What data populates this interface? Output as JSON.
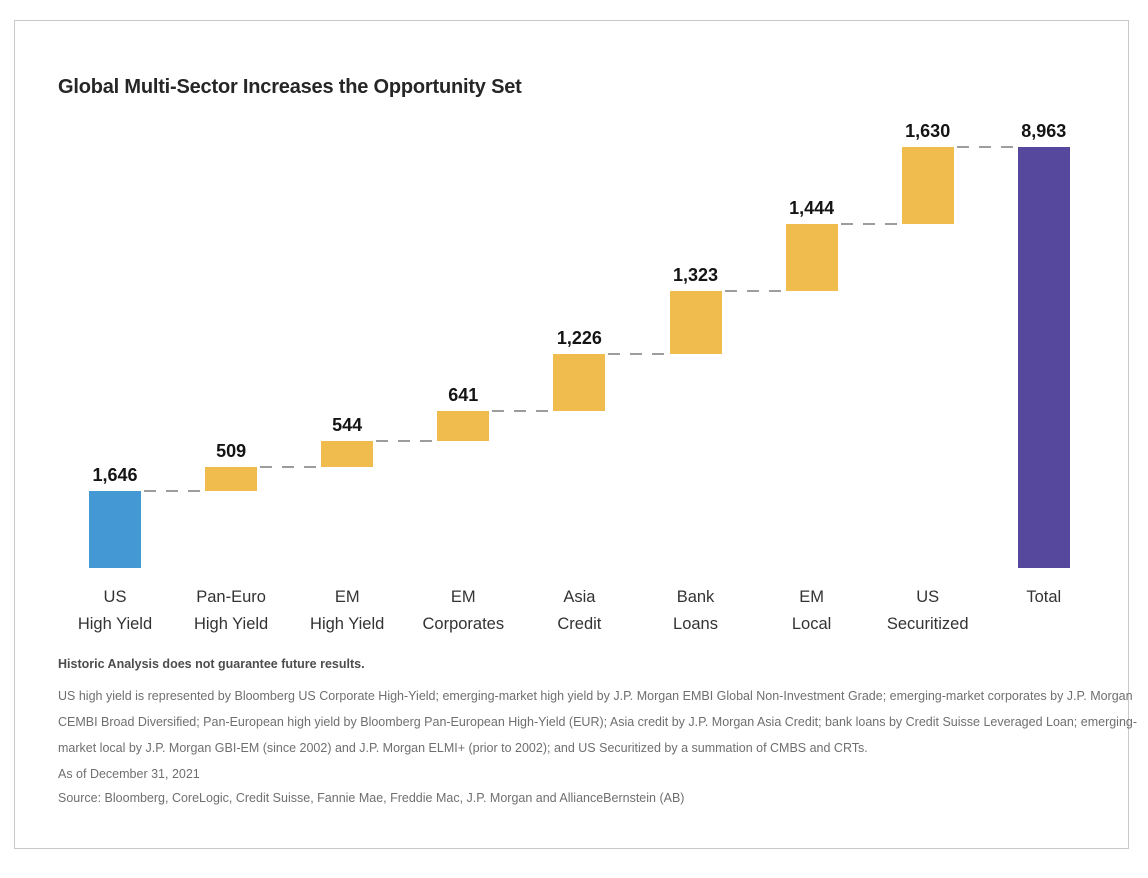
{
  "title": "Global Multi-Sector Increases the Opportunity Set",
  "chart_data": {
    "type": "bar",
    "subtype": "waterfall",
    "title": "Global Multi-Sector Increases the Opportunity Set",
    "xlabel": "",
    "ylabel": "",
    "ylim": [
      0,
      8963
    ],
    "grid": false,
    "legend": "none",
    "items": [
      {
        "label_lines": [
          "US",
          "High Yield"
        ],
        "value": 1646,
        "value_label": "1,646",
        "role": "start"
      },
      {
        "label_lines": [
          "Pan-Euro",
          "High Yield"
        ],
        "value": 509,
        "value_label": "509",
        "role": "increase"
      },
      {
        "label_lines": [
          "EM",
          "High Yield"
        ],
        "value": 544,
        "value_label": "544",
        "role": "increase"
      },
      {
        "label_lines": [
          "EM",
          "Corporates"
        ],
        "value": 641,
        "value_label": "641",
        "role": "increase"
      },
      {
        "label_lines": [
          "Asia",
          "Credit"
        ],
        "value": 1226,
        "value_label": "1,226",
        "role": "increase"
      },
      {
        "label_lines": [
          "Bank",
          "Loans"
        ],
        "value": 1323,
        "value_label": "1,323",
        "role": "increase"
      },
      {
        "label_lines": [
          "EM",
          "Local"
        ],
        "value": 1444,
        "value_label": "1,444",
        "role": "increase"
      },
      {
        "label_lines": [
          "US",
          "Securitized"
        ],
        "value": 1630,
        "value_label": "1,630",
        "role": "increase"
      },
      {
        "label_lines": [
          "Total"
        ],
        "value": 8963,
        "value_label": "8,963",
        "role": "total"
      }
    ],
    "colors": {
      "start": "#4498d3",
      "increase": "#f0bc4d",
      "total": "#55489d",
      "connector": "#9d9d9d"
    }
  },
  "footnotes": {
    "bold": "Historic Analysis does not guarantee future results.",
    "body_lines": [
      "US high yield is represented by Bloomberg US Corporate High-Yield; emerging-market high yield by J.P. Morgan EMBI Global Non-Investment Grade; emerging-market corporates by J.P. Morgan",
      "CEMBI Broad Diversified; Pan-European high yield by Bloomberg Pan-European High-Yield (EUR); Asia credit by J.P. Morgan Asia Credit; bank loans by Credit Suisse Leveraged Loan; emerging-",
      "market local by J.P. Morgan GBI-EM (since 2002) and J.P. Morgan ELMI+ (prior to 2002); and US Securitized by a summation of CMBS and CRTs."
    ],
    "as_of": "As of December 31, 2021",
    "source": "Source: Bloomberg, CoreLogic, Credit Suisse, Fannie Mae, Freddie Mac, J.P. Morgan and AllianceBernstein (AB)"
  }
}
